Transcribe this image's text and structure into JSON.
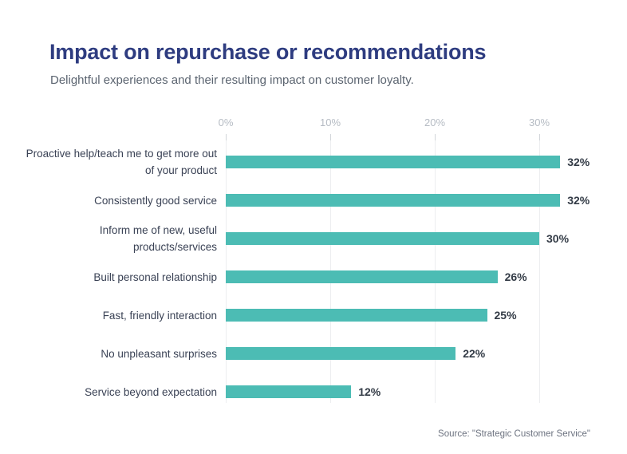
{
  "header": {
    "title": "Impact on repurchase or recommendations",
    "subtitle": "Delightful experiences and their resulting impact on customer loyalty."
  },
  "chart_data": {
    "type": "bar",
    "orientation": "horizontal",
    "title": "Impact on repurchase or recommendations",
    "subtitle": "Delightful experiences and their resulting impact on customer loyalty.",
    "categories": [
      "Proactive help/teach me to get more out of your product",
      "Consistently good service",
      "Inform me of new, useful products/services",
      "Built personal relationship",
      "Fast, friendly interaction",
      "No unpleasant surprises",
      "Service beyond expectation"
    ],
    "values": [
      32,
      32,
      30,
      26,
      25,
      22,
      12
    ],
    "value_labels": [
      "32%",
      "32%",
      "30%",
      "26%",
      "25%",
      "22%",
      "12%"
    ],
    "x_ticks": [
      "0%",
      "10%",
      "20%",
      "30%"
    ],
    "x_tick_values": [
      0,
      10,
      20,
      30
    ],
    "xlim": [
      0,
      36
    ],
    "xlabel": "",
    "ylabel": "",
    "grid": "vertical-only",
    "legend": "none",
    "bar_color": "#4cbcb4",
    "source": "Source: \"Strategic Customer Service\""
  },
  "footer": {
    "source": "Source: \"Strategic Customer Service\""
  }
}
